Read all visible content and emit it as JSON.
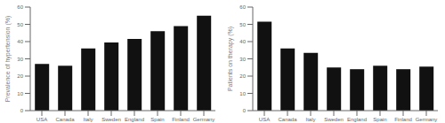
{
  "chart_data": [
    {
      "type": "bar",
      "categories": [
        "USA",
        "Canada",
        "Italy",
        "Sweden",
        "England",
        "Spain",
        "Finland",
        "Germany"
      ],
      "values": [
        27,
        26,
        36,
        39.5,
        41.5,
        46,
        49,
        55
      ],
      "color": "#111111",
      "ylabel": "Prevalence of hypertension (%)",
      "ylim": [
        0,
        60
      ],
      "yticks": [
        0,
        10,
        20,
        30,
        40,
        50,
        60
      ]
    },
    {
      "type": "bar",
      "categories": [
        "USA",
        "Canada",
        "Italy",
        "Sweden",
        "England",
        "Spain",
        "Finland",
        "Germany"
      ],
      "values": [
        51.5,
        36,
        33.5,
        25,
        24,
        26,
        24,
        25.5
      ],
      "color": "#111111",
      "ylabel": "Patients on therapy (%)",
      "ylim": [
        0,
        60
      ],
      "yticks": [
        0,
        10,
        20,
        30,
        40,
        50,
        60
      ]
    }
  ]
}
